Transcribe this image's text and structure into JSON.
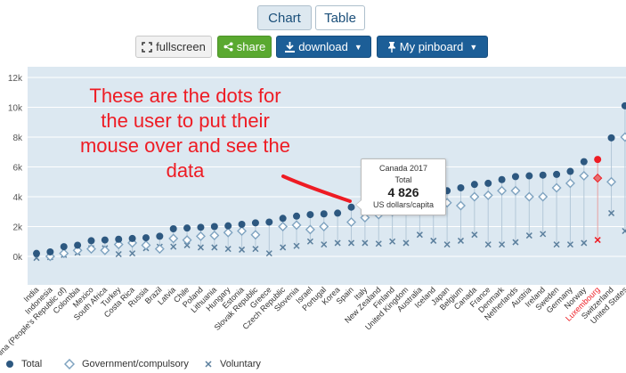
{
  "toolbar": {
    "tab_chart": "Chart",
    "tab_table": "Table",
    "fullscreen_label": "fullscreen",
    "share_label": "share",
    "download_label": "download",
    "pinboard_label": "My pinboard"
  },
  "annotation_text": "These are the dots for the user to put their mouse over and see the data",
  "tooltip": {
    "title": "Canada 2017",
    "series": "Total",
    "value": "4 826",
    "unit": "US dollars/capita"
  },
  "colors": {
    "total": "#2d5880",
    "gov": "#7fa3c0",
    "vol": "#5b7f9d",
    "highlight": "#ee1c24",
    "plot_bg": "#dce8f1",
    "grid": "#ffffff"
  },
  "chart_data": {
    "type": "scatter",
    "ylim": [
      -1000,
      12500
    ],
    "yticks": [
      0,
      2000,
      4000,
      6000,
      8000,
      10000,
      12000
    ],
    "ytick_labels": [
      "0k",
      "2k",
      "4k",
      "6k",
      "8k",
      "10k",
      "12k"
    ],
    "categories": [
      "India",
      "Indonesia",
      "China (People's Republic of)",
      "Colombia",
      "Mexico",
      "South Africa",
      "Turkey",
      "Costa Rica",
      "Russia",
      "Brazil",
      "Latvia",
      "Chile",
      "Poland",
      "Lithuania",
      "Hungary",
      "Estonia",
      "Slovak Republic",
      "Greece",
      "Czech Republic",
      "Slovenia",
      "Israel",
      "Portugal",
      "Korea",
      "Spain",
      "Italy",
      "New Zealand",
      "Finland",
      "United Kingdom",
      "Australia",
      "Iceland",
      "Japan",
      "Belgium",
      "Canada",
      "France",
      "Denmark",
      "Netherlands",
      "Austria",
      "Ireland",
      "Sweden",
      "Germany",
      "Norway",
      "Luxembourg",
      "Switzerland",
      "United States"
    ],
    "highlight_category": "Luxembourg",
    "series": [
      {
        "name": "Total",
        "marker": "dot",
        "values": [
          200,
          300,
          650,
          750,
          1050,
          1100,
          1150,
          1200,
          1250,
          1350,
          1850,
          1900,
          1950,
          2000,
          2050,
          2150,
          2250,
          2300,
          2550,
          2700,
          2800,
          2850,
          2900,
          3300,
          3500,
          3700,
          3850,
          4000,
          4100,
          4200,
          4400,
          4600,
          4826,
          4900,
          5150,
          5350,
          5400,
          5450,
          5500,
          5700,
          6350,
          6500,
          7950,
          10100
        ]
      },
      {
        "name": "Government/compulsory",
        "marker": "diamond",
        "values": [
          null,
          0,
          200,
          400,
          500,
          400,
          800,
          900,
          750,
          500,
          1200,
          1100,
          1350,
          1400,
          1600,
          1700,
          1450,
          null,
          2000,
          2100,
          1800,
          2000,
          null,
          2300,
          2600,
          2800,
          3000,
          3100,
          3200,
          3100,
          3600,
          3400,
          4000,
          4100,
          4400,
          4400,
          4000,
          4000,
          4600,
          4900,
          5400,
          5250,
          5000,
          8000
        ]
      },
      {
        "name": "Voluntary",
        "marker": "cross",
        "values": [
          -100,
          -50,
          100,
          250,
          550,
          550,
          150,
          200,
          550,
          650,
          650,
          750,
          600,
          600,
          500,
          450,
          500,
          200,
          600,
          700,
          1000,
          800,
          900,
          900,
          900,
          850,
          1000,
          900,
          1450,
          1050,
          800,
          1050,
          1450,
          800,
          800,
          950,
          1400,
          1500,
          800,
          800,
          900,
          1100,
          2900,
          1700
        ]
      }
    ]
  },
  "legend": {
    "total": "Total",
    "gov": "Government/compulsory",
    "vol": "Voluntary"
  }
}
